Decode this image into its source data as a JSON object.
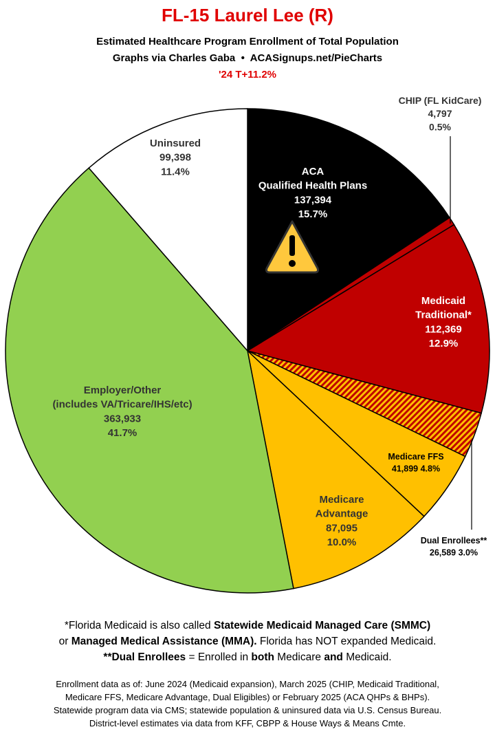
{
  "chart_data": {
    "type": "pie",
    "title": "FL-15 Laurel Lee (R)",
    "subtitle": "Estimated Healthcare Program Enrollment of Total Population",
    "credit": "Graphs via Charles Gaba  •  ACASignups.net/PieCharts",
    "annotation": "'24 T+11.2%",
    "categories": [
      "ACA\nQualified Health Plans",
      "CHIP (FL KidCare)",
      "Medicaid\nTraditional*",
      "Dual Enrollees**",
      "Medicare FFS",
      "Medicare\nAdvantage",
      "Employer/Other\n(includes VA/Tricare/IHS/etc)",
      "Uninsured"
    ],
    "values": [
      137394,
      4797,
      112369,
      26589,
      41899,
      87095,
      363933,
      99398
    ],
    "value_labels": [
      "137,394",
      "4,797",
      "112,369",
      "26,589",
      "41,899",
      "87,095",
      "363,933",
      "99,398"
    ],
    "percents": [
      15.7,
      0.5,
      12.9,
      3.0,
      4.8,
      10.0,
      41.7,
      11.4
    ],
    "percent_labels": [
      "15.7%",
      "0.5%",
      "12.9%",
      "3.0%",
      "4.8%",
      "10.0%",
      "41.7%",
      "11.4%"
    ],
    "colors": [
      "#000000",
      "#c00000",
      "#c00000",
      "#c00000",
      "#ffc000",
      "#ffc000",
      "#92d050",
      "#ffffff"
    ],
    "hatch": [
      false,
      false,
      false,
      true,
      false,
      false,
      false,
      false
    ],
    "notes": {
      "line1": [
        "*Florida Medicaid is also called ",
        "Statewide Medicaid Managed Care (SMMC)"
      ],
      "line2": [
        "or ",
        "Managed Medical Assistance (MMA).",
        " Florida has NOT expanded Medicaid."
      ],
      "line3": [
        "**Dual Enrollees",
        " = Enrolled in ",
        "both",
        " Medicare ",
        "and",
        " Medicaid."
      ]
    },
    "sources": [
      "Enrollment data as of: June 2024 (Medicaid expansion), March 2025 (CHIP, Medicaid Traditional,",
      "Medicare FFS, Medicare Advantage, Dual Eligibles) or February 2025 (ACA QHPs & BHPs).",
      "Statewide program data via CMS; statewide population & uninsured data via U.S. Census Bureau.",
      "District-level estimates via data from KFF, CBPP & House Ways & Means Cmte."
    ]
  }
}
